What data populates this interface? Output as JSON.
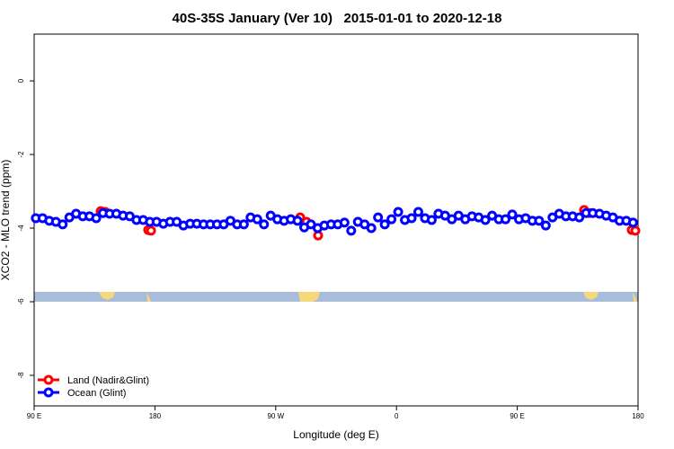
{
  "chart_data": {
    "type": "scatter",
    "title": "40S-35S January (Ver 10)   2015-01-01 to 2020-12-18",
    "x_label": "Longitude (deg E)",
    "y_label": "XCO2 - MLO trend (ppm)",
    "xlim": [
      90,
      540
    ],
    "ylim": [
      -8.83,
      1.27
    ],
    "xticks": [
      {
        "value": 90,
        "label": "90 E"
      },
      180,
      {
        "value": 270,
        "label": "90 W"
      },
      {
        "value": 360,
        "label": "0"
      },
      {
        "value": 450,
        "label": "90 E"
      },
      {
        "value": 540,
        "label": "180"
      }
    ],
    "yticks": [
      0,
      -2,
      -4,
      -6,
      -8
    ],
    "legend": "bottom-left",
    "series": [
      {
        "name": "Land (Nadir&Glint)",
        "color": "#ff0000",
        "x": [
          139.6,
          142.9,
          175.0,
          177.1,
          288.2,
          292.9,
          301.6,
          499.8,
          503.8,
          535.3,
          538.0
        ],
        "values": [
          -3.54,
          -3.56,
          -4.05,
          -4.07,
          -3.71,
          -3.83,
          -4.2,
          -3.51,
          -3.59,
          -4.05,
          -4.07
        ]
      },
      {
        "name": "Ocean (Glint)",
        "color": "#0000ff",
        "x": [
          91.25,
          96.25,
          101.25,
          106.25,
          111.25,
          116.25,
          121.25,
          126.25,
          131.25,
          136.25,
          141.25,
          146.25,
          151.25,
          156.25,
          161.25,
          166.25,
          171.25,
          176.25,
          181.25,
          186.25,
          191.25,
          196.25,
          201.25,
          206.25,
          211.25,
          216.25,
          221.25,
          226.25,
          231.25,
          236.25,
          241.25,
          246.25,
          251.25,
          256.25,
          261.25,
          266.25,
          271.25,
          276.25,
          281.25,
          286.25,
          291.25,
          296.25,
          301.25,
          306.25,
          311.25,
          316.25,
          321.25,
          326.25,
          331.25,
          336.25,
          341.25,
          346.25,
          351.25,
          356.25,
          361.25,
          366.25,
          371.25,
          376.25,
          381.25,
          386.25,
          391.25,
          396.25,
          401.25,
          406.25,
          411.25,
          416.25,
          421.25,
          426.25,
          431.25,
          436.25,
          441.25,
          446.25,
          451.25,
          456.25,
          461.25,
          466.25,
          471.25,
          476.25,
          481.25,
          486.25,
          491.25,
          496.25,
          501.25,
          506.25,
          511.25,
          516.25,
          521.25,
          526.25,
          531.25,
          536.25
        ],
        "values": [
          -3.73,
          -3.73,
          -3.8,
          -3.83,
          -3.9,
          -3.71,
          -3.61,
          -3.68,
          -3.68,
          -3.73,
          -3.59,
          -3.61,
          -3.61,
          -3.66,
          -3.68,
          -3.78,
          -3.78,
          -3.83,
          -3.83,
          -3.88,
          -3.83,
          -3.83,
          -3.93,
          -3.88,
          -3.88,
          -3.9,
          -3.9,
          -3.9,
          -3.9,
          -3.8,
          -3.9,
          -3.9,
          -3.71,
          -3.76,
          -3.9,
          -3.66,
          -3.76,
          -3.8,
          -3.76,
          -3.8,
          -3.98,
          -3.9,
          -4.0,
          -3.93,
          -3.9,
          -3.9,
          -3.85,
          -4.07,
          -3.83,
          -3.9,
          -4.0,
          -3.71,
          -3.9,
          -3.76,
          -3.56,
          -3.78,
          -3.73,
          -3.56,
          -3.73,
          -3.78,
          -3.61,
          -3.66,
          -3.76,
          -3.66,
          -3.76,
          -3.68,
          -3.71,
          -3.78,
          -3.66,
          -3.76,
          -3.76,
          -3.63,
          -3.76,
          -3.73,
          -3.8,
          -3.8,
          -3.93,
          -3.71,
          -3.61,
          -3.68,
          -3.68,
          -3.71,
          -3.59,
          -3.59,
          -3.61,
          -3.66,
          -3.71,
          -3.8,
          -3.8,
          -3.85
        ]
      }
    ]
  }
}
